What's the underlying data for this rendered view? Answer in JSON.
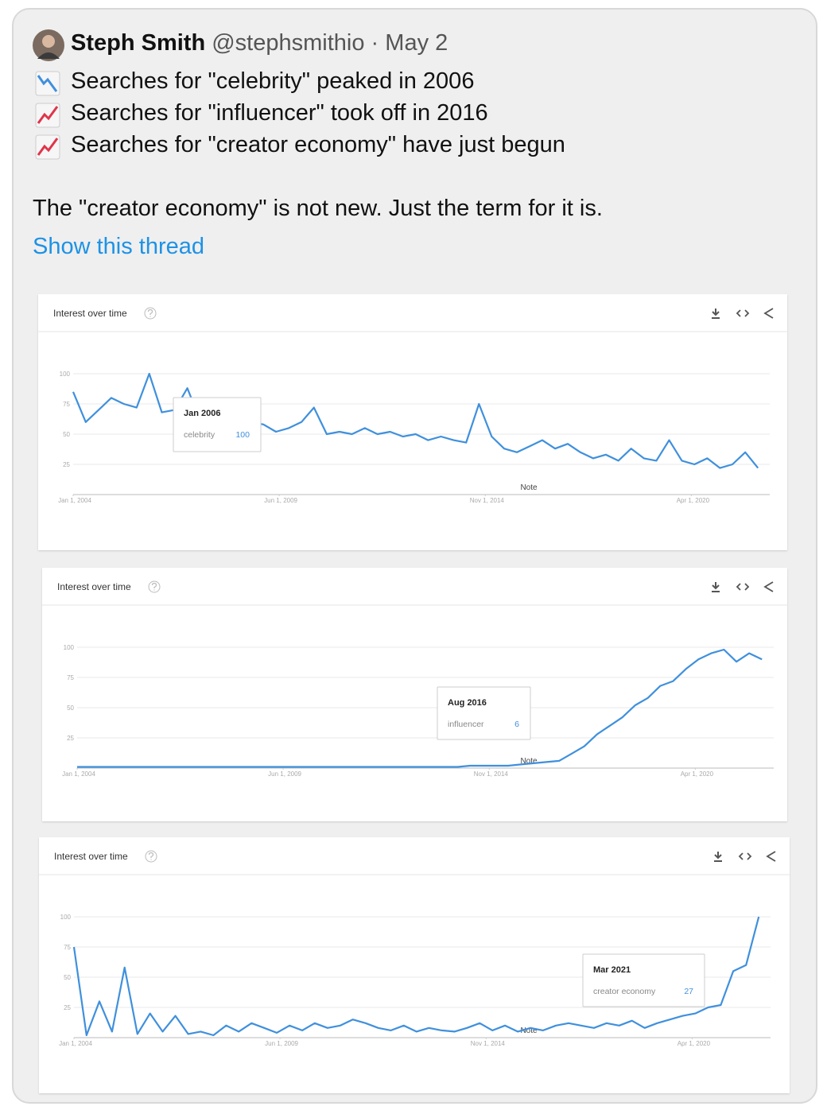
{
  "tweet": {
    "name": "Steph Smith",
    "handle": "@stephsmithio",
    "separator": "·",
    "date": "May 2",
    "lines": [
      "Searches for \"celebrity\" peaked in 2006",
      "Searches for \"influencer\" took off in 2016",
      "Searches for \"creator economy\" have just begun"
    ],
    "body": "The \"creator economy\" is not new. Just the term for it is.",
    "link": "Show this thread"
  },
  "chart_data": [
    {
      "type": "line",
      "title": "Interest over time",
      "note": "Note",
      "x": [
        "2004-01-01",
        "2004-05-01",
        "2004-09-01",
        "2005-01-01",
        "2005-05-01",
        "2005-09-01",
        "2006-01-01",
        "2006-05-01",
        "2006-09-01",
        "2007-01-01",
        "2007-05-01",
        "2007-09-01",
        "2008-01-01",
        "2008-05-01",
        "2008-09-01",
        "2009-01-01",
        "2009-05-01",
        "2009-09-01",
        "2010-01-01",
        "2010-05-01",
        "2010-09-01",
        "2011-01-01",
        "2011-05-01",
        "2011-09-01",
        "2012-01-01",
        "2012-05-01",
        "2012-09-01",
        "2013-01-01",
        "2013-05-01",
        "2013-09-01",
        "2014-01-01",
        "2014-05-01",
        "2014-09-01",
        "2015-01-01",
        "2015-05-01",
        "2015-09-01",
        "2016-01-01",
        "2016-05-01",
        "2016-09-01",
        "2017-01-01",
        "2017-05-01",
        "2017-09-01",
        "2018-01-01",
        "2018-05-01",
        "2018-09-01",
        "2019-01-01",
        "2019-05-01",
        "2019-09-01",
        "2020-01-01",
        "2020-05-01",
        "2020-09-01",
        "2021-01-01",
        "2021-05-01",
        "2021-09-01",
        "2022-01-01"
      ],
      "series": [
        {
          "name": "celebrity",
          "color": "#3f90dd",
          "values": [
            85,
            60,
            70,
            80,
            75,
            72,
            100,
            68,
            70,
            88,
            62,
            68,
            60,
            55,
            60,
            58,
            52,
            55,
            60,
            72,
            50,
            52,
            50,
            55,
            50,
            52,
            48,
            50,
            45,
            48,
            45,
            43,
            75,
            48,
            38,
            35,
            40,
            45,
            38,
            42,
            35,
            30,
            33,
            28,
            38,
            30,
            28,
            45,
            28,
            25,
            30,
            22,
            25,
            35,
            22
          ]
        }
      ],
      "xlim": [
        "2004-01-01",
        "2022-04-01"
      ],
      "xticks": [
        {
          "value": "2004-01-01",
          "label": "Jan 1, 2004"
        },
        {
          "value": "2009-06-01",
          "label": "Jun 1, 2009"
        },
        {
          "value": "2014-11-01",
          "label": "Nov 1, 2014"
        },
        {
          "value": "2020-04-01",
          "label": "Apr 1, 2020"
        }
      ],
      "ylim": [
        0,
        100
      ],
      "yticks": [
        25,
        50,
        75,
        100
      ],
      "grid": true,
      "tooltip": {
        "date": "Jan 2006",
        "value": 100
      }
    },
    {
      "type": "line",
      "title": "Interest over time",
      "note": "Note",
      "x": [
        "2004-01-01",
        "2004-05-01",
        "2004-09-01",
        "2005-01-01",
        "2005-05-01",
        "2005-09-01",
        "2006-01-01",
        "2006-05-01",
        "2006-09-01",
        "2007-01-01",
        "2007-05-01",
        "2007-09-01",
        "2008-01-01",
        "2008-05-01",
        "2008-09-01",
        "2009-01-01",
        "2009-05-01",
        "2009-09-01",
        "2010-01-01",
        "2010-05-01",
        "2010-09-01",
        "2011-01-01",
        "2011-05-01",
        "2011-09-01",
        "2012-01-01",
        "2012-05-01",
        "2012-09-01",
        "2013-01-01",
        "2013-05-01",
        "2013-09-01",
        "2014-01-01",
        "2014-05-01",
        "2014-09-01",
        "2015-01-01",
        "2015-05-01",
        "2015-09-01",
        "2016-01-01",
        "2016-05-01",
        "2016-09-01",
        "2017-01-01",
        "2017-05-01",
        "2017-09-01",
        "2018-01-01",
        "2018-05-01",
        "2018-09-01",
        "2019-01-01",
        "2019-05-01",
        "2019-09-01",
        "2020-01-01",
        "2020-05-01",
        "2020-09-01",
        "2021-01-01",
        "2021-05-01",
        "2021-09-01",
        "2022-01-01"
      ],
      "series": [
        {
          "name": "influencer",
          "color": "#3f90dd",
          "values": [
            1,
            1,
            1,
            1,
            1,
            1,
            1,
            1,
            1,
            1,
            1,
            1,
            1,
            1,
            1,
            1,
            1,
            1,
            1,
            1,
            1,
            1,
            1,
            1,
            1,
            1,
            1,
            1,
            1,
            1,
            1,
            2,
            2,
            2,
            2,
            3,
            4,
            5,
            6,
            12,
            18,
            28,
            35,
            42,
            52,
            58,
            68,
            72,
            82,
            90,
            95,
            98,
            88,
            95,
            90
          ]
        }
      ],
      "xlim": [
        "2004-01-01",
        "2022-04-01"
      ],
      "xticks": [
        {
          "value": "2004-01-01",
          "label": "Jan 1, 2004"
        },
        {
          "value": "2009-06-01",
          "label": "Jun 1, 2009"
        },
        {
          "value": "2014-11-01",
          "label": "Nov 1, 2014"
        },
        {
          "value": "2020-04-01",
          "label": "Apr 1, 2020"
        }
      ],
      "ylim": [
        0,
        100
      ],
      "yticks": [
        25,
        50,
        75,
        100
      ],
      "grid": true,
      "tooltip": {
        "date": "Aug 2016",
        "value": 6
      }
    },
    {
      "type": "line",
      "title": "Interest over time",
      "note": "Note",
      "x": [
        "2004-01-01",
        "2004-05-01",
        "2004-09-01",
        "2005-01-01",
        "2005-05-01",
        "2005-09-01",
        "2006-01-01",
        "2006-05-01",
        "2006-09-01",
        "2007-01-01",
        "2007-05-01",
        "2007-09-01",
        "2008-01-01",
        "2008-05-01",
        "2008-09-01",
        "2009-01-01",
        "2009-05-01",
        "2009-09-01",
        "2010-01-01",
        "2010-05-01",
        "2010-09-01",
        "2011-01-01",
        "2011-05-01",
        "2011-09-01",
        "2012-01-01",
        "2012-05-01",
        "2012-09-01",
        "2013-01-01",
        "2013-05-01",
        "2013-09-01",
        "2014-01-01",
        "2014-05-01",
        "2014-09-01",
        "2015-01-01",
        "2015-05-01",
        "2015-09-01",
        "2016-01-01",
        "2016-05-01",
        "2016-09-01",
        "2017-01-01",
        "2017-05-01",
        "2017-09-01",
        "2018-01-01",
        "2018-05-01",
        "2018-09-01",
        "2019-01-01",
        "2019-05-01",
        "2019-09-01",
        "2020-01-01",
        "2020-05-01",
        "2020-09-01",
        "2021-01-01",
        "2021-05-01",
        "2021-09-01",
        "2022-01-01"
      ],
      "series": [
        {
          "name": "creator economy",
          "color": "#3f90dd",
          "values": [
            75,
            2,
            30,
            5,
            58,
            3,
            20,
            5,
            18,
            3,
            5,
            2,
            10,
            5,
            12,
            8,
            4,
            10,
            6,
            12,
            8,
            10,
            15,
            12,
            8,
            6,
            10,
            5,
            8,
            6,
            5,
            8,
            12,
            6,
            10,
            5,
            8,
            6,
            10,
            12,
            10,
            8,
            12,
            10,
            14,
            8,
            12,
            15,
            18,
            20,
            25,
            27,
            55,
            60,
            100
          ]
        }
      ],
      "xlim": [
        "2004-01-01",
        "2022-04-01"
      ],
      "xticks": [
        {
          "value": "2004-01-01",
          "label": "Jan 1, 2004"
        },
        {
          "value": "2009-06-01",
          "label": "Jun 1, 2009"
        },
        {
          "value": "2014-11-01",
          "label": "Nov 1, 2014"
        },
        {
          "value": "2020-04-01",
          "label": "Apr 1, 2020"
        }
      ],
      "ylim": [
        0,
        100
      ],
      "yticks": [
        25,
        50,
        75,
        100
      ],
      "grid": true,
      "tooltip": {
        "date": "Mar 2021",
        "value": 27
      }
    }
  ]
}
